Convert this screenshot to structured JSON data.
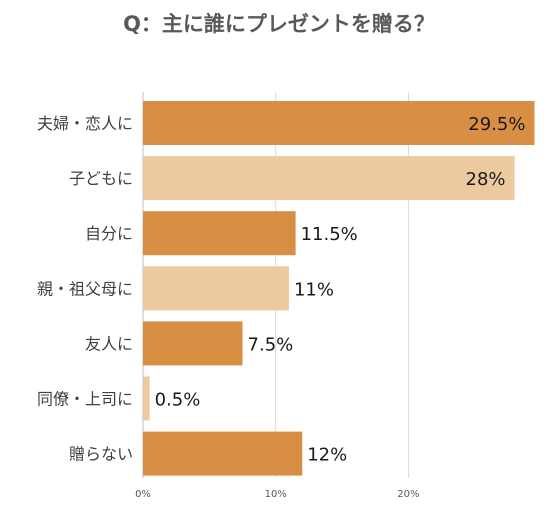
{
  "chart_data": {
    "type": "bar",
    "orientation": "horizontal",
    "title": "Q：主に誰にプレゼントを贈る？",
    "categories": [
      "夫婦・恋人に",
      "子どもに",
      "自分に",
      "親・祖父母に",
      "友人に",
      "同僚・上司に",
      "贈らない"
    ],
    "values": [
      29.5,
      28,
      11.5,
      11,
      7.5,
      0.5,
      12
    ],
    "value_labels": [
      "29.5%",
      "28%",
      "11.5%",
      "11%",
      "7.5%",
      "0.5%",
      "12%"
    ],
    "xlim": [
      0,
      30
    ],
    "x_ticks": [
      0,
      10,
      20
    ],
    "x_tick_labels": [
      "0%",
      "10%",
      "20%"
    ],
    "grid": true,
    "legend": "none",
    "bar_colors": [
      "#d98f43",
      "#edc9a0",
      "#d98f43",
      "#edc9a0",
      "#d98f43",
      "#edc9a0",
      "#d98f43"
    ],
    "colors": {
      "title": "#595959",
      "category_label": "#404040",
      "value_label": "#1a1a1a",
      "tick_label": "#595959",
      "gridline": "#d9d9d9",
      "axis": "#bfbfbf"
    }
  }
}
